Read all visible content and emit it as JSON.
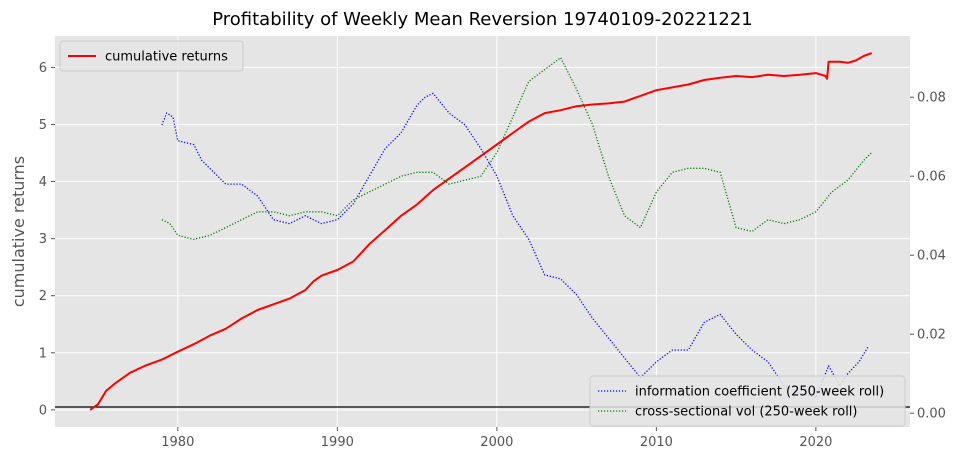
{
  "chart_data": {
    "type": "line",
    "title": "Profitability of Weekly Mean Reversion 19740109-20221221",
    "xlabel": "",
    "ylabel": "cumulative returns",
    "y2label": "",
    "xlim": [
      1972.3,
      2025.9
    ],
    "ylim": [
      -0.3,
      6.55
    ],
    "y2lim": [
      -0.0035,
      0.0955
    ],
    "x_ticks": [
      1980,
      1990,
      2000,
      2010,
      2020
    ],
    "y_ticks": [
      0,
      1,
      2,
      3,
      4,
      5,
      6
    ],
    "y2_ticks": [
      0.0,
      0.02,
      0.04,
      0.06,
      0.08
    ],
    "y2_tick_labels": [
      "0.00",
      "0.02",
      "0.04",
      "0.06",
      "0.08"
    ],
    "grid": true,
    "hline": 0.05,
    "series": [
      {
        "name": "cumulative returns",
        "axis": "left",
        "color": "#ff0000",
        "style": "solid",
        "legend": "top-left",
        "points": [
          [
            1974.5,
            0.0
          ],
          [
            1975.0,
            0.1
          ],
          [
            1975.5,
            0.33
          ],
          [
            1976.0,
            0.45
          ],
          [
            1977.0,
            0.65
          ],
          [
            1978.0,
            0.78
          ],
          [
            1979.0,
            0.88
          ],
          [
            1980.0,
            1.02
          ],
          [
            1981.0,
            1.15
          ],
          [
            1982.0,
            1.3
          ],
          [
            1983.0,
            1.42
          ],
          [
            1984.0,
            1.6
          ],
          [
            1985.0,
            1.75
          ],
          [
            1986.0,
            1.85
          ],
          [
            1987.0,
            1.95
          ],
          [
            1988.0,
            2.1
          ],
          [
            1988.5,
            2.25
          ],
          [
            1989.0,
            2.35
          ],
          [
            1990.0,
            2.45
          ],
          [
            1991.0,
            2.6
          ],
          [
            1992.0,
            2.9
          ],
          [
            1993.0,
            3.15
          ],
          [
            1994.0,
            3.4
          ],
          [
            1995.0,
            3.6
          ],
          [
            1996.0,
            3.85
          ],
          [
            1997.0,
            4.05
          ],
          [
            1998.0,
            4.25
          ],
          [
            1999.0,
            4.45
          ],
          [
            2000.0,
            4.65
          ],
          [
            2001.0,
            4.85
          ],
          [
            2002.0,
            5.05
          ],
          [
            2003.0,
            5.2
          ],
          [
            2004.0,
            5.25
          ],
          [
            2005.0,
            5.32
          ],
          [
            2006.0,
            5.35
          ],
          [
            2007.0,
            5.37
          ],
          [
            2008.0,
            5.4
          ],
          [
            2009.0,
            5.5
          ],
          [
            2010.0,
            5.6
          ],
          [
            2011.0,
            5.65
          ],
          [
            2012.0,
            5.7
          ],
          [
            2013.0,
            5.78
          ],
          [
            2014.0,
            5.82
          ],
          [
            2015.0,
            5.85
          ],
          [
            2016.0,
            5.83
          ],
          [
            2017.0,
            5.87
          ],
          [
            2018.0,
            5.85
          ],
          [
            2019.0,
            5.87
          ],
          [
            2020.0,
            5.9
          ],
          [
            2020.6,
            5.85
          ],
          [
            2020.7,
            5.8
          ],
          [
            2020.8,
            6.1
          ],
          [
            2021.5,
            6.1
          ],
          [
            2022.0,
            6.08
          ],
          [
            2022.5,
            6.12
          ],
          [
            2023.0,
            6.2
          ],
          [
            2023.5,
            6.25
          ]
        ]
      },
      {
        "name": "information coefficient (250-week roll)",
        "axis": "right",
        "color": "#0000ff",
        "style": "dotted",
        "legend": "bottom-right",
        "points": [
          [
            1979.0,
            0.073
          ],
          [
            1979.3,
            0.076
          ],
          [
            1979.7,
            0.075
          ],
          [
            1980.0,
            0.069
          ],
          [
            1981.0,
            0.068
          ],
          [
            1981.5,
            0.064
          ],
          [
            1982.0,
            0.062
          ],
          [
            1983.0,
            0.058
          ],
          [
            1984.0,
            0.058
          ],
          [
            1985.0,
            0.055
          ],
          [
            1986.0,
            0.049
          ],
          [
            1987.0,
            0.048
          ],
          [
            1988.0,
            0.05
          ],
          [
            1989.0,
            0.048
          ],
          [
            1990.0,
            0.049
          ],
          [
            1991.0,
            0.053
          ],
          [
            1992.0,
            0.06
          ],
          [
            1993.0,
            0.067
          ],
          [
            1994.0,
            0.071
          ],
          [
            1995.0,
            0.078
          ],
          [
            1995.5,
            0.08
          ],
          [
            1996.0,
            0.081
          ],
          [
            1997.0,
            0.076
          ],
          [
            1998.0,
            0.073
          ],
          [
            1999.0,
            0.067
          ],
          [
            2000.0,
            0.06
          ],
          [
            2001.0,
            0.05
          ],
          [
            2002.0,
            0.044
          ],
          [
            2003.0,
            0.035
          ],
          [
            2004.0,
            0.034
          ],
          [
            2005.0,
            0.03
          ],
          [
            2006.0,
            0.024
          ],
          [
            2007.0,
            0.019
          ],
          [
            2008.0,
            0.014
          ],
          [
            2009.0,
            0.009
          ],
          [
            2010.0,
            0.013
          ],
          [
            2011.0,
            0.016
          ],
          [
            2012.0,
            0.016
          ],
          [
            2013.0,
            0.023
          ],
          [
            2014.0,
            0.025
          ],
          [
            2015.0,
            0.02
          ],
          [
            2016.0,
            0.016
          ],
          [
            2017.0,
            0.013
          ],
          [
            2018.0,
            0.007
          ],
          [
            2019.0,
            0.005
          ],
          [
            2020.0,
            0.004
          ],
          [
            2020.8,
            0.012
          ],
          [
            2021.5,
            0.007
          ],
          [
            2022.0,
            0.01
          ],
          [
            2022.7,
            0.013
          ],
          [
            2023.3,
            0.017
          ]
        ]
      },
      {
        "name": "cross-sectional vol (250-week roll)",
        "axis": "right",
        "color": "#008000",
        "style": "dotted",
        "legend": "bottom-right",
        "points": [
          [
            1979.0,
            0.049
          ],
          [
            1979.5,
            0.048
          ],
          [
            1980.0,
            0.045
          ],
          [
            1981.0,
            0.044
          ],
          [
            1982.0,
            0.045
          ],
          [
            1983.0,
            0.047
          ],
          [
            1984.0,
            0.049
          ],
          [
            1985.0,
            0.051
          ],
          [
            1986.0,
            0.051
          ],
          [
            1987.0,
            0.05
          ],
          [
            1988.0,
            0.051
          ],
          [
            1989.0,
            0.051
          ],
          [
            1990.0,
            0.05
          ],
          [
            1991.0,
            0.054
          ],
          [
            1992.0,
            0.056
          ],
          [
            1993.0,
            0.058
          ],
          [
            1994.0,
            0.06
          ],
          [
            1995.0,
            0.061
          ],
          [
            1996.0,
            0.061
          ],
          [
            1997.0,
            0.058
          ],
          [
            1998.0,
            0.059
          ],
          [
            1999.0,
            0.06
          ],
          [
            2000.0,
            0.066
          ],
          [
            2001.0,
            0.075
          ],
          [
            2002.0,
            0.084
          ],
          [
            2003.0,
            0.087
          ],
          [
            2004.0,
            0.09
          ],
          [
            2005.0,
            0.082
          ],
          [
            2006.0,
            0.073
          ],
          [
            2007.0,
            0.06
          ],
          [
            2008.0,
            0.05
          ],
          [
            2009.0,
            0.047
          ],
          [
            2010.0,
            0.056
          ],
          [
            2011.0,
            0.061
          ],
          [
            2012.0,
            0.062
          ],
          [
            2013.0,
            0.062
          ],
          [
            2014.0,
            0.061
          ],
          [
            2015.0,
            0.047
          ],
          [
            2016.0,
            0.046
          ],
          [
            2017.0,
            0.049
          ],
          [
            2018.0,
            0.048
          ],
          [
            2019.0,
            0.049
          ],
          [
            2020.0,
            0.051
          ],
          [
            2021.0,
            0.056
          ],
          [
            2022.0,
            0.059
          ],
          [
            2023.0,
            0.064
          ],
          [
            2023.5,
            0.066
          ]
        ]
      }
    ]
  }
}
